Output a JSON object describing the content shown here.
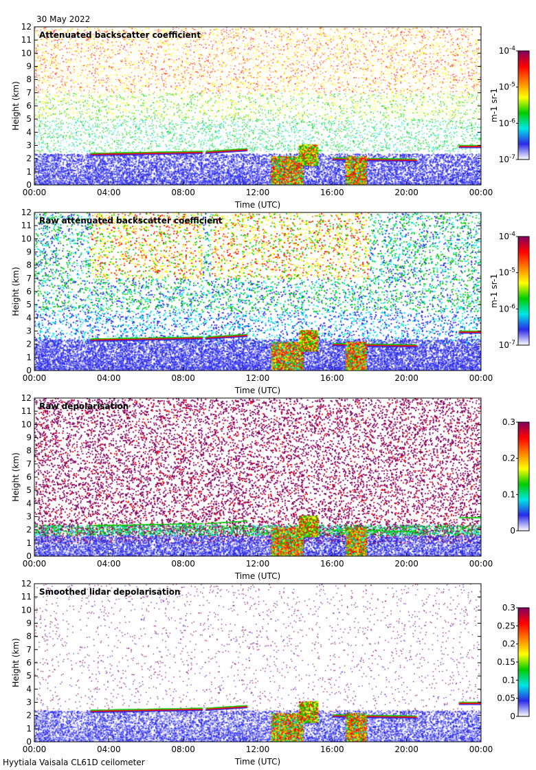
{
  "date_label": "30 May 2022",
  "footer": "Hyytiala Vaisala CL61D ceilometer",
  "chart_data": [
    {
      "type": "heatmap",
      "title": "Attenuated backscatter coefficient",
      "xlabel": "Time (UTC)",
      "ylabel": "Height (km)",
      "x_ticks": [
        "00:00",
        "04:00",
        "08:00",
        "12:00",
        "16:00",
        "20:00",
        "00:00"
      ],
      "xlim": [
        0,
        24
      ],
      "y_ticks": [
        0,
        1,
        2,
        3,
        4,
        5,
        6,
        7,
        8,
        9,
        10,
        11,
        12
      ],
      "ylim": [
        0,
        12
      ],
      "colorbar": {
        "label": "m-1 sr-1",
        "scale": "log",
        "range": [
          1e-07,
          0.0001
        ],
        "ticks": [
          {
            "base": "10",
            "exp": "-4"
          },
          {
            "base": "10",
            "exp": "-5"
          },
          {
            "base": "10",
            "exp": "-6"
          },
          {
            "base": "10",
            "exp": "-7"
          }
        ]
      },
      "colormap": [
        "#ffffff",
        "#2a2ae8",
        "#00e5e5",
        "#00cc00",
        "#ffff00",
        "#ff8000",
        "#ff0000",
        "#800060"
      ]
    },
    {
      "type": "heatmap",
      "title": "Raw attenuated backscatter coefficient",
      "xlabel": "Time (UTC)",
      "ylabel": "Height (km)",
      "x_ticks": [
        "00:00",
        "04:00",
        "08:00",
        "12:00",
        "16:00",
        "20:00",
        "00:00"
      ],
      "xlim": [
        0,
        24
      ],
      "y_ticks": [
        0,
        1,
        2,
        3,
        4,
        5,
        6,
        7,
        8,
        9,
        10,
        11,
        12
      ],
      "ylim": [
        0,
        12
      ],
      "colorbar": {
        "label": "m-1 sr-1",
        "scale": "log",
        "range": [
          1e-07,
          0.0001
        ],
        "ticks": [
          {
            "base": "10",
            "exp": "-4"
          },
          {
            "base": "10",
            "exp": "-5"
          },
          {
            "base": "10",
            "exp": "-6"
          },
          {
            "base": "10",
            "exp": "-7"
          }
        ]
      },
      "colormap": [
        "#ffffff",
        "#2a2ae8",
        "#00e5e5",
        "#00cc00",
        "#ffff00",
        "#ff8000",
        "#ff0000",
        "#800060"
      ]
    },
    {
      "type": "heatmap",
      "title": "Raw depolarisation",
      "xlabel": "Time (UTC)",
      "ylabel": "Height (km)",
      "x_ticks": [
        "00:00",
        "04:00",
        "08:00",
        "12:00",
        "16:00",
        "20:00",
        "00:00"
      ],
      "xlim": [
        0,
        24
      ],
      "y_ticks": [
        0,
        1,
        2,
        3,
        4,
        5,
        6,
        7,
        8,
        9,
        10,
        11,
        12
      ],
      "ylim": [
        0,
        12
      ],
      "colorbar": {
        "label": "",
        "scale": "linear",
        "range": [
          0,
          0.3
        ],
        "ticks": [
          "0.3",
          "0.2",
          "0.1",
          "0"
        ]
      },
      "colormap": [
        "#ffffff",
        "#2a2ae8",
        "#00e5e5",
        "#00cc00",
        "#ffff00",
        "#ff8000",
        "#ff0000",
        "#800060"
      ]
    },
    {
      "type": "heatmap",
      "title": "Smoothed lidar depolarisation",
      "xlabel": "Time (UTC)",
      "ylabel": "Height (km)",
      "x_ticks": [
        "00:00",
        "04:00",
        "08:00",
        "12:00",
        "16:00",
        "20:00",
        "00:00"
      ],
      "xlim": [
        0,
        24
      ],
      "y_ticks": [
        0,
        1,
        2,
        3,
        4,
        5,
        6,
        7,
        8,
        9,
        10,
        11,
        12
      ],
      "ylim": [
        0,
        12
      ],
      "colorbar": {
        "label": "",
        "scale": "linear",
        "range": [
          0,
          0.3
        ],
        "ticks": [
          "0.3",
          "0.25",
          "0.2",
          "0.15",
          "0.1",
          "0.05",
          "0"
        ]
      },
      "colormap": [
        "#ffffff",
        "#2a2ae8",
        "#00e5e5",
        "#00cc00",
        "#ffff00",
        "#ff8000",
        "#ff0000",
        "#800060"
      ]
    }
  ]
}
